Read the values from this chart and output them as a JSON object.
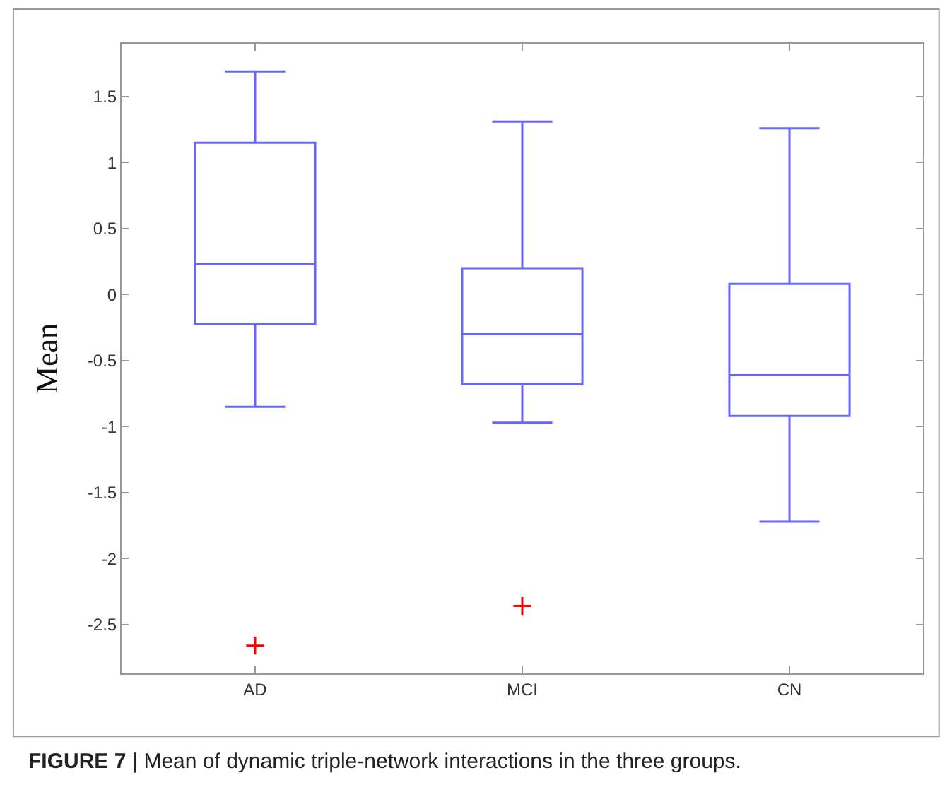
{
  "chart_data": {
    "type": "box",
    "categories": [
      "AD",
      "MCI",
      "CN"
    ],
    "ylabel": "Mean",
    "annotations": [
      "FIGURE 7 | Mean of dynamic triple-network interactions in the three groups."
    ],
    "color": "#6666ff",
    "boxes": [
      {
        "low": -0.85,
        "q1": -0.22,
        "median": 0.23,
        "q3": 1.15,
        "high": 1.69,
        "outliers": [
          -2.66
        ]
      },
      {
        "low": -0.97,
        "q1": -0.68,
        "median": -0.3,
        "q3": 0.2,
        "high": 1.31,
        "outliers": [
          -2.36
        ]
      },
      {
        "low": -1.72,
        "q1": -0.92,
        "median": -0.61,
        "q3": 0.08,
        "high": 1.26
      }
    ],
    "ylim": [
      -2.87,
      1.9
    ],
    "yticks": [
      -2.5,
      -2,
      -1.5,
      -1,
      -0.5,
      0,
      0.5,
      1,
      1.5
    ],
    "grid": false
  }
}
